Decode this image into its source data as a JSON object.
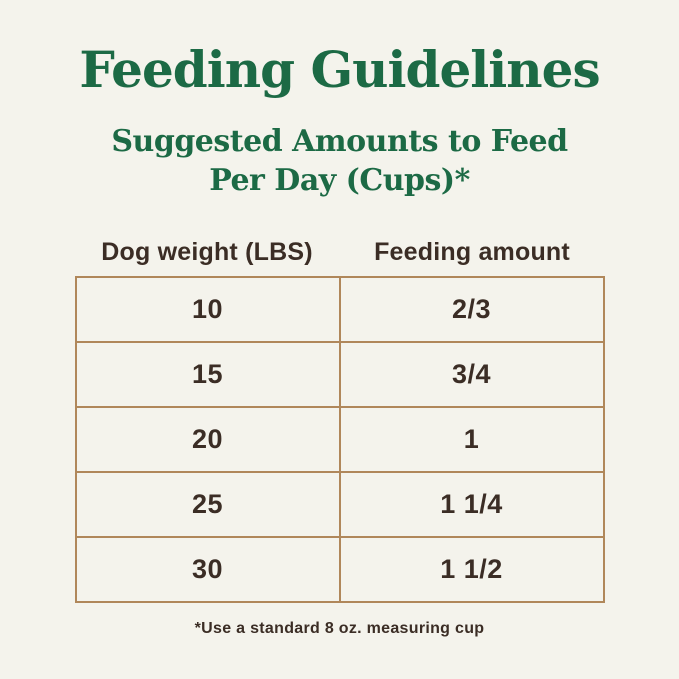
{
  "header": {
    "title": "Feeding Guidelines",
    "subtitle_line1": "Suggested Amounts to Feed",
    "subtitle_line2": "Per Day (Cups)*"
  },
  "footnote": "*Use a standard 8 oz. measuring cup",
  "colors": {
    "background": "#f4f3ec",
    "title_green": "#1c6a45",
    "table_border": "#b0875a",
    "text_dark": "#3b2d25"
  },
  "chart_data": {
    "type": "table",
    "title": "Feeding Guidelines",
    "subtitle": "Suggested Amounts to Feed Per Day (Cups)*",
    "columns": [
      "Dog weight (LBS)",
      "Feeding amount"
    ],
    "rows": [
      [
        "10",
        "2/3"
      ],
      [
        "15",
        "3/4"
      ],
      [
        "20",
        "1"
      ],
      [
        "25",
        "1 1/4"
      ],
      [
        "30",
        "1 1/2"
      ]
    ],
    "footnote": "*Use a standard 8 oz. measuring cup",
    "units": {
      "weight": "LBS",
      "amount": "cups per day"
    }
  }
}
